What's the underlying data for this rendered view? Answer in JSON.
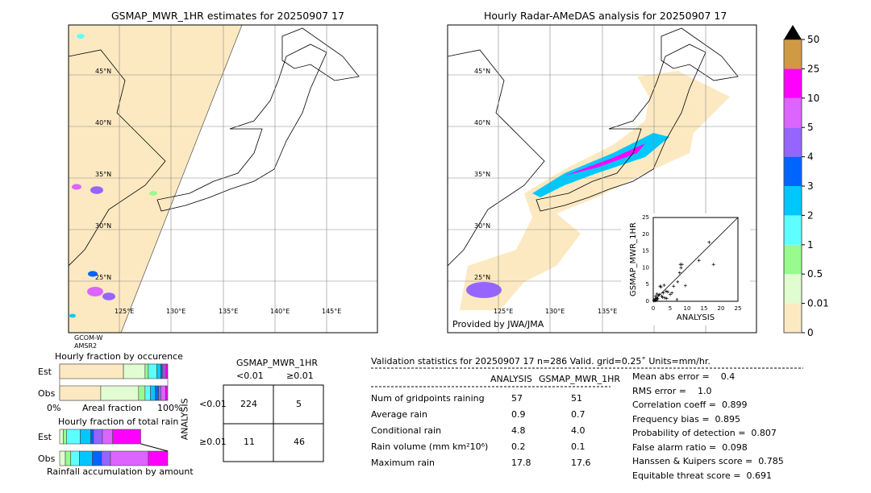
{
  "left_map": {
    "title": "GSMAP_MWR_1HR estimates for 20250907 17",
    "satellite": "GCOM-W\nAMSR2",
    "satellite_line1": "GCOM-W",
    "satellite_line2": "AMSR2"
  },
  "right_map": {
    "title": "Hourly Radar-AMeDAS analysis for 20250907 17",
    "credit": "Provided by JWA/JMA"
  },
  "map_axes": {
    "lat_labels": [
      "45°N",
      "40°N",
      "35°N",
      "30°N",
      "25°N"
    ],
    "lon_labels": [
      "125°E",
      "130°E",
      "135°E",
      "140°E",
      "145°E"
    ]
  },
  "colorbar": {
    "ticks": [
      "0",
      "0.01",
      "0.5",
      "1",
      "2",
      "3",
      "4",
      "5",
      "10",
      "25",
      "50"
    ],
    "colors": [
      "#fde9c1",
      "#e0fcd0",
      "#98fb8d",
      "#5effff",
      "#00c8ff",
      "#0064ff",
      "#9664ff",
      "#dc64ff",
      "#ff00ff",
      "#d09a45"
    ],
    "extend_color": "#000000"
  },
  "chart_data": [
    {
      "type": "scatter",
      "xlabel": "ANALYSIS",
      "ylabel": "GSMAP_MWR_1HR",
      "xlim": [
        0,
        25
      ],
      "ylim": [
        0,
        25
      ],
      "xticks": [
        "0",
        "5",
        "10",
        "15",
        "20",
        "25"
      ],
      "yticks": [
        "0",
        "5",
        "10",
        "15",
        "20",
        "25"
      ],
      "points": [
        [
          0.2,
          0.1
        ],
        [
          0.3,
          0.4
        ],
        [
          0.5,
          0.2
        ],
        [
          0.6,
          0.8
        ],
        [
          0.8,
          0.3
        ],
        [
          1,
          1
        ],
        [
          1.2,
          0.5
        ],
        [
          1.5,
          1.8
        ],
        [
          1.8,
          2
        ],
        [
          2,
          4.5
        ],
        [
          2.3,
          4.3
        ],
        [
          2.5,
          1.5
        ],
        [
          3,
          2.5
        ],
        [
          3.2,
          4.8
        ],
        [
          3.5,
          1
        ],
        [
          4,
          0.8
        ],
        [
          4.3,
          2.8
        ],
        [
          5,
          2
        ],
        [
          5.5,
          2.5
        ],
        [
          6,
          4.5
        ],
        [
          7,
          0.5
        ],
        [
          7.2,
          5.8
        ],
        [
          7.8,
          8.5
        ],
        [
          8,
          11
        ],
        [
          8.2,
          10
        ],
        [
          8.5,
          11
        ],
        [
          9.5,
          4.7
        ],
        [
          13.5,
          12.2
        ],
        [
          16.5,
          17.6
        ],
        [
          17.8,
          11
        ],
        [
          0.7,
          1.5
        ],
        [
          1.3,
          0.8
        ],
        [
          2.8,
          1.2
        ],
        [
          3.8,
          3
        ],
        [
          1.1,
          2.2
        ]
      ],
      "diagonal": true
    },
    {
      "type": "bar",
      "title": "Hourly fraction by occurence",
      "categories": [
        "Est",
        "Obs"
      ],
      "xlabel": "Areal fraction",
      "xtick_left": "0%",
      "xtick_right": "100%",
      "stacked": true,
      "series": [
        {
          "values": [
            0.59,
            0.38
          ]
        },
        {
          "values": [
            0.2,
            0.35
          ]
        },
        {
          "values": [
            0.03,
            0.06
          ]
        },
        {
          "values": [
            0.08,
            0.05
          ]
        },
        {
          "values": [
            0.035,
            0.045
          ]
        },
        {
          "values": [
            0.015,
            0.03
          ]
        },
        {
          "values": [
            0.018,
            0.02
          ]
        },
        {
          "values": [
            0.012,
            0.045
          ]
        },
        {
          "values": [
            0.018,
            0.015
          ]
        }
      ]
    },
    {
      "type": "bar",
      "title": "Hourly fraction of total rain",
      "categories": [
        "Est",
        "Obs"
      ],
      "xlabel": "Rainfall accumulation by amount",
      "stacked": true,
      "series": [
        {
          "values": [
            0.0325,
            0.0525
          ]
        },
        {
          "values": [
            0.03,
            0.05
          ]
        },
        {
          "values": [
            0.1275,
            0.08
          ]
        },
        {
          "values": [
            0.0975,
            0.12
          ]
        },
        {
          "values": [
            0.025,
            0.085
          ]
        },
        {
          "values": [
            0.0825,
            0.0825
          ]
        },
        {
          "values": [
            0.095,
            0.35
          ]
        },
        {
          "values": [
            0.26,
            0.18
          ]
        }
      ]
    },
    {
      "type": "table",
      "title": "GSMAP_MWR_1HR",
      "col_headers": [
        "<0.01",
        "≥0.01"
      ],
      "row_label": "ANALYSIS",
      "row_headers": [
        "<0.01",
        "≥0.01"
      ],
      "cells": [
        [
          "224",
          "5"
        ],
        [
          "11",
          "46"
        ]
      ]
    }
  ],
  "validation": {
    "header": "Validation statistics for 20250907 17  n=286 Valid. grid=0.25˚ Units=mm/hr.",
    "col_analysis": "ANALYSIS",
    "col_gsmap": "GSMAP_MWR_1HR",
    "rows": [
      {
        "label": "Num of gridpoints raining",
        "analysis": "57",
        "gsmap": "51"
      },
      {
        "label": "Average rain",
        "analysis": "0.9",
        "gsmap": "0.7"
      },
      {
        "label": "Conditional rain",
        "analysis": "4.8",
        "gsmap": "4.0"
      },
      {
        "label": "Rain volume (mm km²10⁶)",
        "analysis": "0.2",
        "gsmap": "0.1"
      },
      {
        "label": "Maximum rain",
        "analysis": "17.8",
        "gsmap": "17.6"
      }
    ],
    "scores": [
      "Mean abs error =    0.4",
      "RMS error =    1.0",
      "Correlation coeff =  0.899",
      "Frequency bias =  0.895",
      "Probability of detection =  0.807",
      "False alarm ratio =  0.098",
      "Hanssen & Kuipers score =  0.785",
      "Equitable threat score =  0.691"
    ]
  }
}
